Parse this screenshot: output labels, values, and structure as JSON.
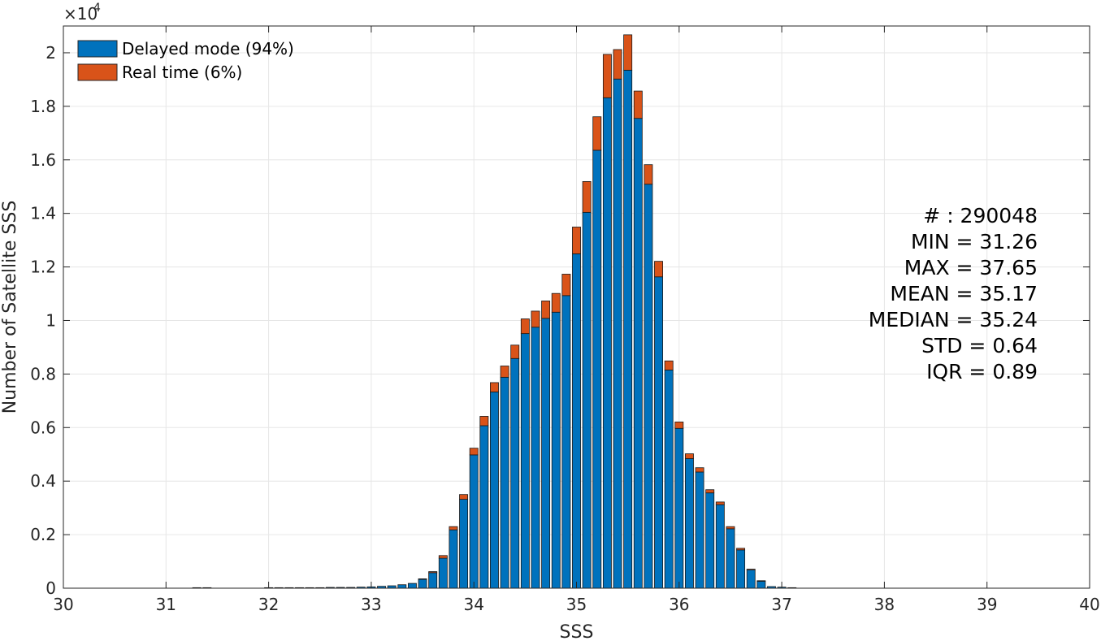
{
  "chart_data": {
    "type": "bar",
    "stacked": true,
    "title": "",
    "xlabel": "SSS",
    "ylabel": "Number of Satellite SSS",
    "y_exponent_label": "×10",
    "y_exponent_power": "4",
    "y_multiplier": 10000,
    "xlim": [
      30,
      40
    ],
    "ylim": [
      0,
      2.1
    ],
    "xticks": [
      "30",
      "31",
      "32",
      "33",
      "34",
      "35",
      "36",
      "37",
      "38",
      "39",
      "40"
    ],
    "yticks": [
      "0",
      "0.2",
      "0.4",
      "0.6",
      "0.8",
      "1",
      "1.2",
      "1.4",
      "1.6",
      "1.8",
      "2"
    ],
    "grid": true,
    "legend_position": "top-left",
    "bin_width": 0.1,
    "x": [
      31.3,
      31.4,
      32.0,
      32.1,
      32.2,
      32.3,
      32.4,
      32.5,
      32.6,
      32.7,
      32.8,
      32.9,
      33.0,
      33.1,
      33.2,
      33.3,
      33.4,
      33.5,
      33.6,
      33.7,
      33.8,
      33.9,
      34.0,
      34.1,
      34.2,
      34.3,
      34.4,
      34.5,
      34.6,
      34.7,
      34.8,
      34.9,
      35.0,
      35.1,
      35.2,
      35.3,
      35.4,
      35.5,
      35.6,
      35.7,
      35.8,
      35.9,
      36.0,
      36.1,
      36.2,
      36.3,
      36.4,
      36.5,
      36.6,
      36.7,
      36.8,
      36.9,
      37.0,
      37.1
    ],
    "series": [
      {
        "name": "Delayed mode (94%)",
        "color": "#0072BD",
        "values": [
          0.002,
          0.002,
          0.002,
          0.002,
          0.002,
          0.002,
          0.002,
          0.002,
          0.003,
          0.003,
          0.003,
          0.004,
          0.005,
          0.007,
          0.009,
          0.013,
          0.018,
          0.033,
          0.058,
          0.112,
          0.218,
          0.332,
          0.498,
          0.607,
          0.733,
          0.788,
          0.858,
          0.951,
          0.975,
          1.008,
          1.031,
          1.093,
          1.249,
          1.404,
          1.636,
          1.832,
          1.902,
          1.935,
          1.755,
          1.509,
          1.163,
          0.815,
          0.597,
          0.484,
          0.434,
          0.356,
          0.312,
          0.222,
          0.143,
          0.068,
          0.026,
          0.006,
          0.004,
          0.002
        ]
      },
      {
        "name": "Real time (6%)",
        "color": "#D95319",
        "values": [
          0,
          0,
          0,
          0,
          0,
          0,
          0,
          0,
          0,
          0,
          0,
          0,
          0,
          0,
          0,
          0,
          0,
          0.002,
          0.004,
          0.01,
          0.012,
          0.018,
          0.025,
          0.035,
          0.035,
          0.042,
          0.05,
          0.055,
          0.06,
          0.065,
          0.07,
          0.08,
          0.1,
          0.115,
          0.125,
          0.162,
          0.11,
          0.132,
          0.102,
          0.073,
          0.058,
          0.034,
          0.024,
          0.018,
          0.016,
          0.012,
          0.01,
          0.008,
          0.006,
          0.003,
          0.002,
          0,
          0,
          0
        ]
      }
    ],
    "annotation_lines": [
      "# : 290048",
      "MIN = 31.26",
      "MAX =  37.65",
      "MEAN = 35.17",
      "MEDIAN = 35.24",
      "STD = 0.64",
      "IQR = 0.89"
    ]
  }
}
